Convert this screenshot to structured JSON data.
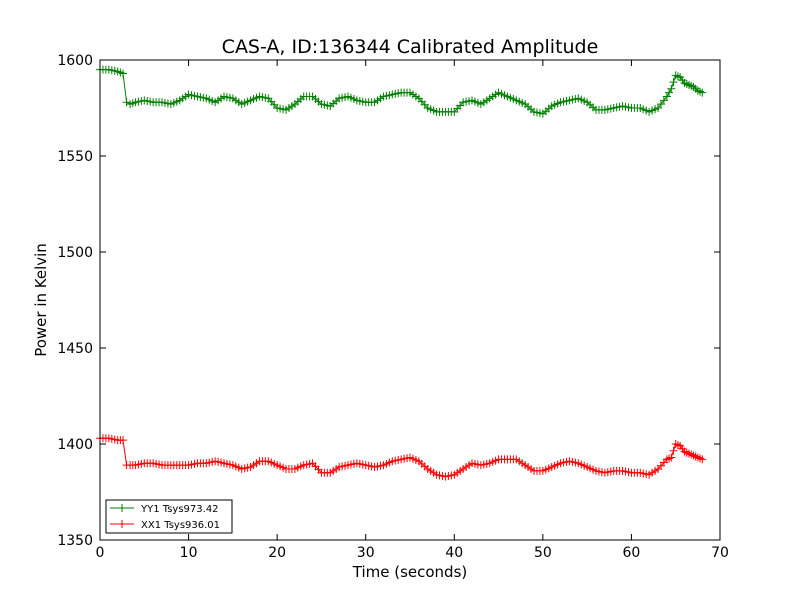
{
  "chart_data": {
    "type": "line",
    "title": "CAS-A, ID:136344 Calibrated Amplitude",
    "xlabel": "Time (seconds)",
    "ylabel": "Power in Kelvin",
    "xlim": [
      0,
      70
    ],
    "ylim": [
      1350,
      1600
    ],
    "xticks": [
      "0",
      "10",
      "20",
      "30",
      "40",
      "50",
      "60",
      "70"
    ],
    "yticks": [
      "1350",
      "1400",
      "1450",
      "1500",
      "1550",
      "1600"
    ],
    "grid": false,
    "legend_position": "lower-left",
    "marker": "plus",
    "series": [
      {
        "name": "YY1 Tsys973.42",
        "color": "#008000",
        "x": [
          0.0,
          1.0,
          2.0,
          2.6,
          3.0,
          3.4,
          4.0,
          5.0,
          6.0,
          7.0,
          8.0,
          9.0,
          10.0,
          11.0,
          12.0,
          13.0,
          14.0,
          15.0,
          16.0,
          17.0,
          18.0,
          19.0,
          20.0,
          21.0,
          22.0,
          23.0,
          24.0,
          25.0,
          26.0,
          27.0,
          28.0,
          29.0,
          30.0,
          31.0,
          32.0,
          33.0,
          34.0,
          35.0,
          36.0,
          37.0,
          38.0,
          39.0,
          40.0,
          41.0,
          42.0,
          43.0,
          44.0,
          45.0,
          46.0,
          47.0,
          48.0,
          49.0,
          50.0,
          51.0,
          52.0,
          53.0,
          54.0,
          55.0,
          56.0,
          57.0,
          58.0,
          59.0,
          60.0,
          61.0,
          62.0,
          63.0,
          64.0,
          64.5,
          65.0,
          65.5,
          66.0,
          66.5,
          67.0,
          67.5,
          68.0
        ],
        "y": [
          1595,
          1595,
          1594,
          1593,
          1578,
          1577,
          1578,
          1579,
          1578,
          1578,
          1577,
          1579,
          1582,
          1581,
          1580,
          1578,
          1581,
          1580,
          1577,
          1579,
          1581,
          1580,
          1575,
          1574,
          1577,
          1581,
          1581,
          1577,
          1576,
          1580,
          1581,
          1579,
          1578,
          1578,
          1581,
          1582,
          1583,
          1583,
          1580,
          1575,
          1573,
          1573,
          1573,
          1578,
          1579,
          1577,
          1580,
          1583,
          1581,
          1579,
          1577,
          1573,
          1572,
          1576,
          1578,
          1579,
          1580,
          1578,
          1574,
          1574,
          1575,
          1576,
          1575,
          1575,
          1573,
          1575,
          1581,
          1585,
          1592,
          1591,
          1588,
          1587,
          1586,
          1584,
          1583
        ]
      },
      {
        "name": "XX1 Tsys936.01",
        "color": "#ff0000",
        "x": [
          0.0,
          1.0,
          2.0,
          2.6,
          3.0,
          3.4,
          4.0,
          5.0,
          6.0,
          7.0,
          8.0,
          9.0,
          10.0,
          11.0,
          12.0,
          13.0,
          14.0,
          15.0,
          16.0,
          17.0,
          18.0,
          19.0,
          20.0,
          21.0,
          22.0,
          23.0,
          24.0,
          25.0,
          26.0,
          27.0,
          28.0,
          29.0,
          30.0,
          31.0,
          32.0,
          33.0,
          34.0,
          35.0,
          36.0,
          37.0,
          38.0,
          39.0,
          40.0,
          41.0,
          42.0,
          43.0,
          44.0,
          45.0,
          46.0,
          47.0,
          48.0,
          49.0,
          50.0,
          51.0,
          52.0,
          53.0,
          54.0,
          55.0,
          56.0,
          57.0,
          58.0,
          59.0,
          60.0,
          61.0,
          62.0,
          63.0,
          64.0,
          64.5,
          65.0,
          65.5,
          66.0,
          66.5,
          67.0,
          67.5,
          68.0
        ],
        "y": [
          1403,
          1403,
          1402,
          1402,
          1389,
          1389,
          1389,
          1390,
          1390,
          1389,
          1389,
          1389,
          1389,
          1390,
          1390,
          1391,
          1390,
          1389,
          1387,
          1388,
          1391,
          1391,
          1389,
          1387,
          1387,
          1389,
          1390,
          1385,
          1385,
          1388,
          1389,
          1390,
          1389,
          1388,
          1389,
          1391,
          1392,
          1393,
          1391,
          1387,
          1384,
          1383,
          1384,
          1387,
          1390,
          1389,
          1390,
          1392,
          1392,
          1392,
          1389,
          1386,
          1386,
          1388,
          1390,
          1391,
          1390,
          1388,
          1386,
          1385,
          1386,
          1386,
          1385,
          1385,
          1384,
          1387,
          1392,
          1393,
          1400,
          1399,
          1396,
          1395,
          1394,
          1393,
          1392
        ]
      }
    ]
  }
}
